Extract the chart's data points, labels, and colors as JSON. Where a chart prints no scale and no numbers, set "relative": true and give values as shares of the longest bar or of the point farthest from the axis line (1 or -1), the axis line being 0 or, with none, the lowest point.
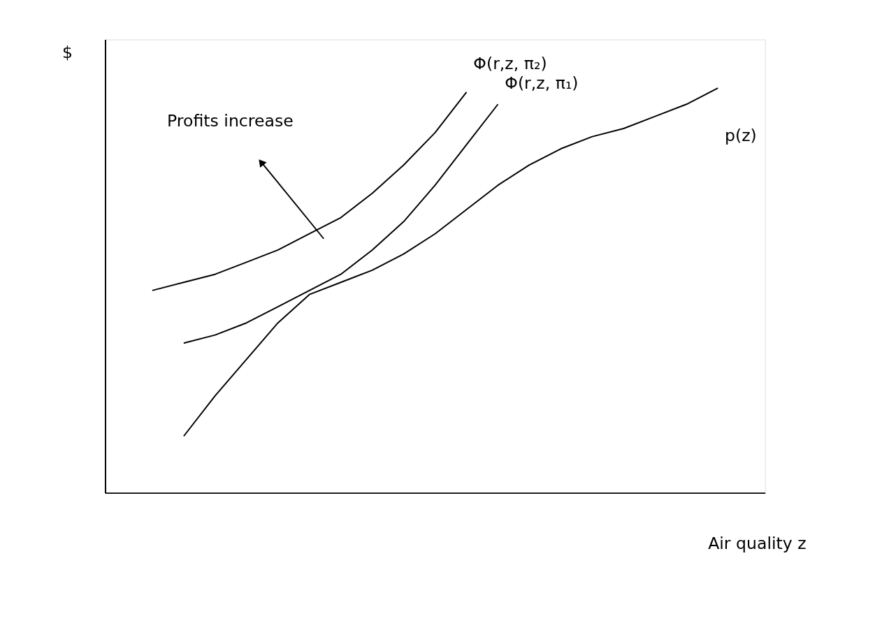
{
  "chart_data": {
    "type": "line",
    "relative": true,
    "xlabel": "Air quality z",
    "ylabel": "$",
    "annotations": [
      "Profits increase"
    ],
    "grid": false,
    "marker": "none",
    "line_style": "solid",
    "categories": [
      null,
      null,
      null,
      null,
      null,
      null,
      null,
      null,
      null,
      null,
      null,
      null,
      null,
      null,
      null,
      null,
      null,
      null,
      null,
      null,
      null
    ],
    "series": [
      {
        "name": "Φ(r,z, π₂)",
        "color": "#000000",
        "values": [
          null,
          0.5,
          0.52,
          0.54,
          0.57,
          0.6,
          0.64,
          0.68,
          0.74,
          0.81,
          0.89,
          0.99,
          null,
          null,
          null,
          null,
          null,
          null,
          null,
          null,
          null
        ]
      },
      {
        "name": "Φ(r,z, π₁)",
        "color": "#000000",
        "values": [
          null,
          null,
          0.37,
          0.39,
          0.42,
          0.46,
          0.5,
          0.54,
          0.6,
          0.67,
          0.76,
          0.86,
          0.96,
          null,
          null,
          null,
          null,
          null,
          null,
          null,
          null
        ]
      },
      {
        "name": "p(z)",
        "color": "#000000",
        "values": [
          null,
          null,
          0.14,
          0.24,
          0.33,
          0.42,
          0.49,
          0.52,
          0.55,
          0.59,
          0.64,
          0.7,
          0.76,
          0.81,
          0.85,
          0.88,
          0.9,
          0.93,
          0.96,
          1.0,
          null
        ]
      }
    ]
  }
}
